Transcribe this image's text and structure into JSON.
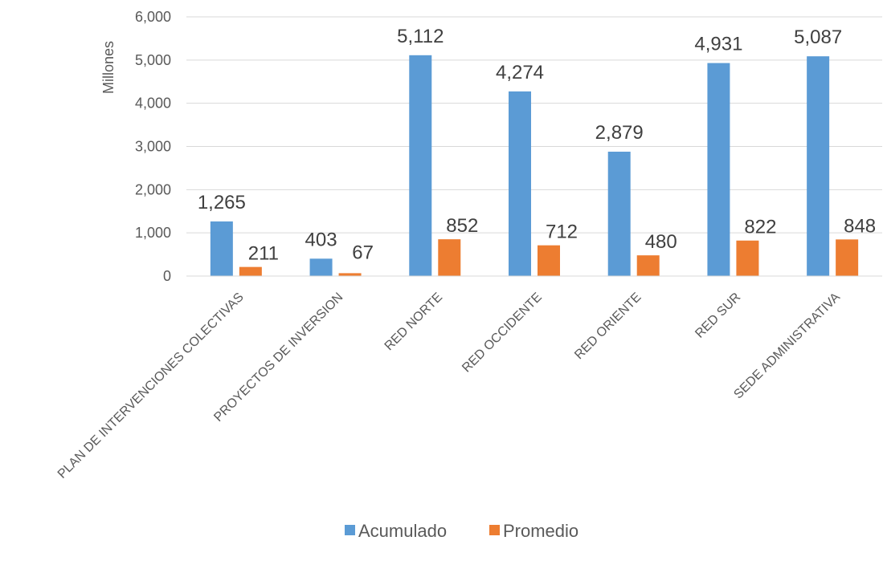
{
  "chart_data": {
    "type": "bar",
    "title": "",
    "xlabel": "",
    "ylabel": "Millones",
    "ylim": [
      0,
      6000
    ],
    "yticks": [
      "0",
      "1,000",
      "2,000",
      "3,000",
      "4,000",
      "5,000",
      "6,000"
    ],
    "categories": [
      "PLAN DE INTERVENCIONES COLECTIVAS",
      "PROYECTOS DE INVERSION",
      "RED NORTE",
      "RED OCCIDENTE",
      "RED ORIENTE",
      "RED SUR",
      "SEDE ADMINISTRATIVA"
    ],
    "series": [
      {
        "name": "Acumulado",
        "color": "#5B9BD5",
        "values": [
          1265,
          403,
          5112,
          4274,
          2879,
          4931,
          5087
        ],
        "labels": [
          "1,265",
          "403",
          "5,112",
          "4,274",
          "2,879",
          "4,931",
          "5,087"
        ]
      },
      {
        "name": "Promedio",
        "color": "#ED7D31",
        "values": [
          211,
          67,
          852,
          712,
          480,
          822,
          848
        ],
        "labels": [
          "211",
          "67",
          "852",
          "712",
          "480",
          "822",
          "848"
        ]
      }
    ],
    "grid": true,
    "legend": "bottom"
  }
}
